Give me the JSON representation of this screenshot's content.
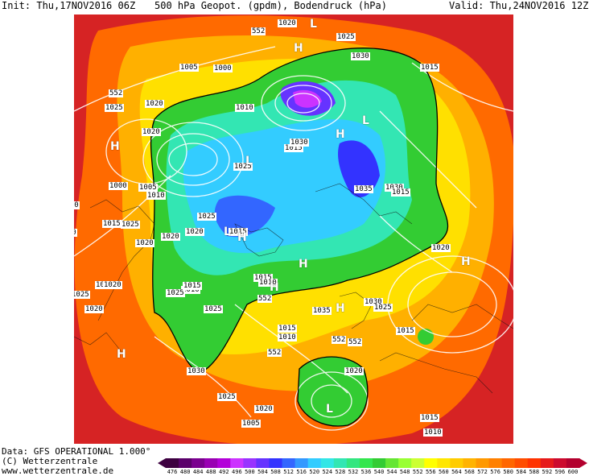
{
  "header": {
    "init": "Init: Thu,17NOV2016 06Z",
    "title": "500 hPa Geopot. (gpdm), Bodendruck (hPa)",
    "valid": "Valid: Thu,24NOV2016 12Z"
  },
  "footer": {
    "data": "Data: GFS OPERATIONAL 1.000°",
    "copyright": "(C) Wetterzentrale",
    "url": "www.wetterzentrale.de"
  },
  "colorbar": {
    "ticks": [
      "476",
      "480",
      "484",
      "488",
      "492",
      "496",
      "500",
      "504",
      "508",
      "512",
      "516",
      "520",
      "524",
      "528",
      "532",
      "536",
      "540",
      "544",
      "548",
      "552",
      "556",
      "560",
      "564",
      "568",
      "572",
      "576",
      "580",
      "584",
      "588",
      "592",
      "596",
      "600"
    ],
    "colors": [
      "#3d0040",
      "#5a006a",
      "#7a008f",
      "#9900b3",
      "#b300d9",
      "#cc33ff",
      "#9933ff",
      "#6633ff",
      "#3333ff",
      "#3366ff",
      "#3399ff",
      "#33ccff",
      "#33e6e6",
      "#33e6b3",
      "#33e680",
      "#33e64d",
      "#33cc33",
      "#66e633",
      "#99ff33",
      "#ccff33",
      "#ffff00",
      "#ffe600",
      "#ffcc00",
      "#ffb300",
      "#ff9900",
      "#ff8000",
      "#ff6600",
      "#ff4d00",
      "#ff3300",
      "#e61a1a",
      "#cc0a2e",
      "#b3002e"
    ]
  },
  "pressure_labels": [
    {
      "text": "1020"
    },
    {
      "text": "552"
    },
    {
      "text": "1025"
    },
    {
      "text": "1030"
    },
    {
      "text": "1015"
    },
    {
      "text": "1005"
    },
    {
      "text": "1000"
    },
    {
      "text": "1010"
    },
    {
      "text": "1025"
    },
    {
      "text": "552"
    },
    {
      "text": "1020"
    },
    {
      "text": "1025"
    },
    {
      "text": "1020"
    },
    {
      "text": "1015"
    },
    {
      "text": "1030"
    },
    {
      "text": "1035"
    },
    {
      "text": "1030"
    },
    {
      "text": "1015"
    },
    {
      "text": "1000"
    },
    {
      "text": "1005"
    },
    {
      "text": "1010"
    },
    {
      "text": "1025"
    },
    {
      "text": "1015"
    },
    {
      "text": "1030"
    },
    {
      "text": "1020"
    },
    {
      "text": "1025"
    },
    {
      "text": "1020"
    },
    {
      "text": "1020"
    },
    {
      "text": "1015"
    },
    {
      "text": "1020"
    },
    {
      "text": "1015"
    },
    {
      "text": "1015"
    },
    {
      "text": "1020"
    },
    {
      "text": "1020"
    },
    {
      "text": "1015"
    },
    {
      "text": "1010"
    },
    {
      "text": "1010"
    },
    {
      "text": "1025"
    },
    {
      "text": "1025"
    },
    {
      "text": "552"
    },
    {
      "text": "1035"
    },
    {
      "text": "1030"
    },
    {
      "text": "1025"
    },
    {
      "text": "1015"
    },
    {
      "text": "1010"
    },
    {
      "text": "552"
    },
    {
      "text": "552"
    },
    {
      "text": "552"
    },
    {
      "text": "1030"
    },
    {
      "text": "1020"
    },
    {
      "text": "1025"
    },
    {
      "text": "1020"
    },
    {
      "text": "1005"
    },
    {
      "text": "1015"
    },
    {
      "text": "1010"
    },
    {
      "text": "1015"
    },
    {
      "text": "1020"
    },
    {
      "text": "1025"
    }
  ],
  "pressure_centers": [
    {
      "text": "L"
    },
    {
      "text": "H"
    },
    {
      "text": "L"
    },
    {
      "text": "H"
    },
    {
      "text": "H"
    },
    {
      "text": "L"
    },
    {
      "text": "L"
    },
    {
      "text": "H"
    },
    {
      "text": "H"
    },
    {
      "text": "H"
    },
    {
      "text": "H"
    },
    {
      "text": "H"
    },
    {
      "text": "L"
    },
    {
      "text": "H"
    }
  ]
}
